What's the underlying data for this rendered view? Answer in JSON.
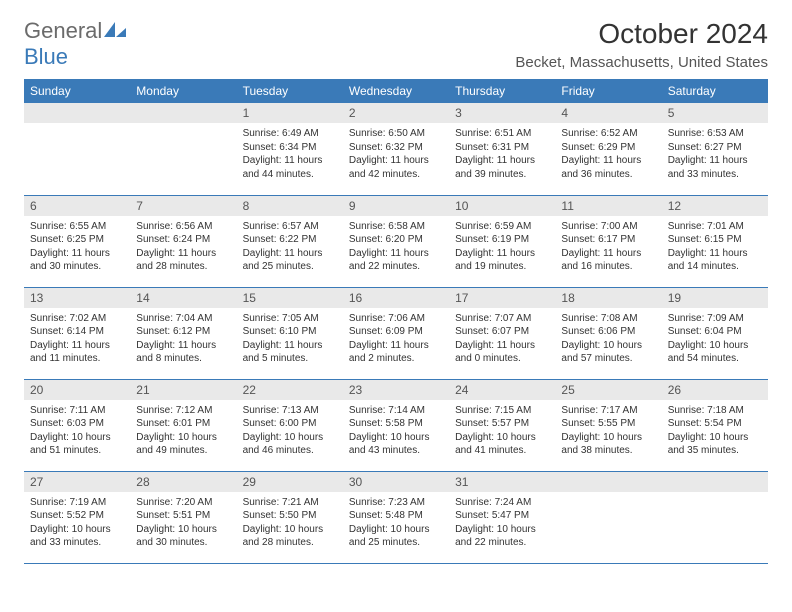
{
  "logo": {
    "word1": "General",
    "word2": "Blue"
  },
  "header": {
    "title": "October 2024",
    "location": "Becket, Massachusetts, United States"
  },
  "colors": {
    "header_bg": "#3a7ab8",
    "header_text": "#ffffff",
    "daynum_bg": "#e9e9e9",
    "border": "#3a7ab8",
    "logo_gray": "#6b6b6b",
    "logo_blue": "#3a7ab8"
  },
  "day_labels": [
    "Sunday",
    "Monday",
    "Tuesday",
    "Wednesday",
    "Thursday",
    "Friday",
    "Saturday"
  ],
  "weeks": [
    [
      null,
      null,
      {
        "n": "1",
        "sunrise": "6:49 AM",
        "sunset": "6:34 PM",
        "dayh": "11",
        "daym": "44"
      },
      {
        "n": "2",
        "sunrise": "6:50 AM",
        "sunset": "6:32 PM",
        "dayh": "11",
        "daym": "42"
      },
      {
        "n": "3",
        "sunrise": "6:51 AM",
        "sunset": "6:31 PM",
        "dayh": "11",
        "daym": "39"
      },
      {
        "n": "4",
        "sunrise": "6:52 AM",
        "sunset": "6:29 PM",
        "dayh": "11",
        "daym": "36"
      },
      {
        "n": "5",
        "sunrise": "6:53 AM",
        "sunset": "6:27 PM",
        "dayh": "11",
        "daym": "33"
      }
    ],
    [
      {
        "n": "6",
        "sunrise": "6:55 AM",
        "sunset": "6:25 PM",
        "dayh": "11",
        "daym": "30"
      },
      {
        "n": "7",
        "sunrise": "6:56 AM",
        "sunset": "6:24 PM",
        "dayh": "11",
        "daym": "28"
      },
      {
        "n": "8",
        "sunrise": "6:57 AM",
        "sunset": "6:22 PM",
        "dayh": "11",
        "daym": "25"
      },
      {
        "n": "9",
        "sunrise": "6:58 AM",
        "sunset": "6:20 PM",
        "dayh": "11",
        "daym": "22"
      },
      {
        "n": "10",
        "sunrise": "6:59 AM",
        "sunset": "6:19 PM",
        "dayh": "11",
        "daym": "19"
      },
      {
        "n": "11",
        "sunrise": "7:00 AM",
        "sunset": "6:17 PM",
        "dayh": "11",
        "daym": "16"
      },
      {
        "n": "12",
        "sunrise": "7:01 AM",
        "sunset": "6:15 PM",
        "dayh": "11",
        "daym": "14"
      }
    ],
    [
      {
        "n": "13",
        "sunrise": "7:02 AM",
        "sunset": "6:14 PM",
        "dayh": "11",
        "daym": "11"
      },
      {
        "n": "14",
        "sunrise": "7:04 AM",
        "sunset": "6:12 PM",
        "dayh": "11",
        "daym": "8"
      },
      {
        "n": "15",
        "sunrise": "7:05 AM",
        "sunset": "6:10 PM",
        "dayh": "11",
        "daym": "5"
      },
      {
        "n": "16",
        "sunrise": "7:06 AM",
        "sunset": "6:09 PM",
        "dayh": "11",
        "daym": "2"
      },
      {
        "n": "17",
        "sunrise": "7:07 AM",
        "sunset": "6:07 PM",
        "dayh": "11",
        "daym": "0"
      },
      {
        "n": "18",
        "sunrise": "7:08 AM",
        "sunset": "6:06 PM",
        "dayh": "10",
        "daym": "57"
      },
      {
        "n": "19",
        "sunrise": "7:09 AM",
        "sunset": "6:04 PM",
        "dayh": "10",
        "daym": "54"
      }
    ],
    [
      {
        "n": "20",
        "sunrise": "7:11 AM",
        "sunset": "6:03 PM",
        "dayh": "10",
        "daym": "51"
      },
      {
        "n": "21",
        "sunrise": "7:12 AM",
        "sunset": "6:01 PM",
        "dayh": "10",
        "daym": "49"
      },
      {
        "n": "22",
        "sunrise": "7:13 AM",
        "sunset": "6:00 PM",
        "dayh": "10",
        "daym": "46"
      },
      {
        "n": "23",
        "sunrise": "7:14 AM",
        "sunset": "5:58 PM",
        "dayh": "10",
        "daym": "43"
      },
      {
        "n": "24",
        "sunrise": "7:15 AM",
        "sunset": "5:57 PM",
        "dayh": "10",
        "daym": "41"
      },
      {
        "n": "25",
        "sunrise": "7:17 AM",
        "sunset": "5:55 PM",
        "dayh": "10",
        "daym": "38"
      },
      {
        "n": "26",
        "sunrise": "7:18 AM",
        "sunset": "5:54 PM",
        "dayh": "10",
        "daym": "35"
      }
    ],
    [
      {
        "n": "27",
        "sunrise": "7:19 AM",
        "sunset": "5:52 PM",
        "dayh": "10",
        "daym": "33"
      },
      {
        "n": "28",
        "sunrise": "7:20 AM",
        "sunset": "5:51 PM",
        "dayh": "10",
        "daym": "30"
      },
      {
        "n": "29",
        "sunrise": "7:21 AM",
        "sunset": "5:50 PM",
        "dayh": "10",
        "daym": "28"
      },
      {
        "n": "30",
        "sunrise": "7:23 AM",
        "sunset": "5:48 PM",
        "dayh": "10",
        "daym": "25"
      },
      {
        "n": "31",
        "sunrise": "7:24 AM",
        "sunset": "5:47 PM",
        "dayh": "10",
        "daym": "22"
      },
      null,
      null
    ]
  ]
}
